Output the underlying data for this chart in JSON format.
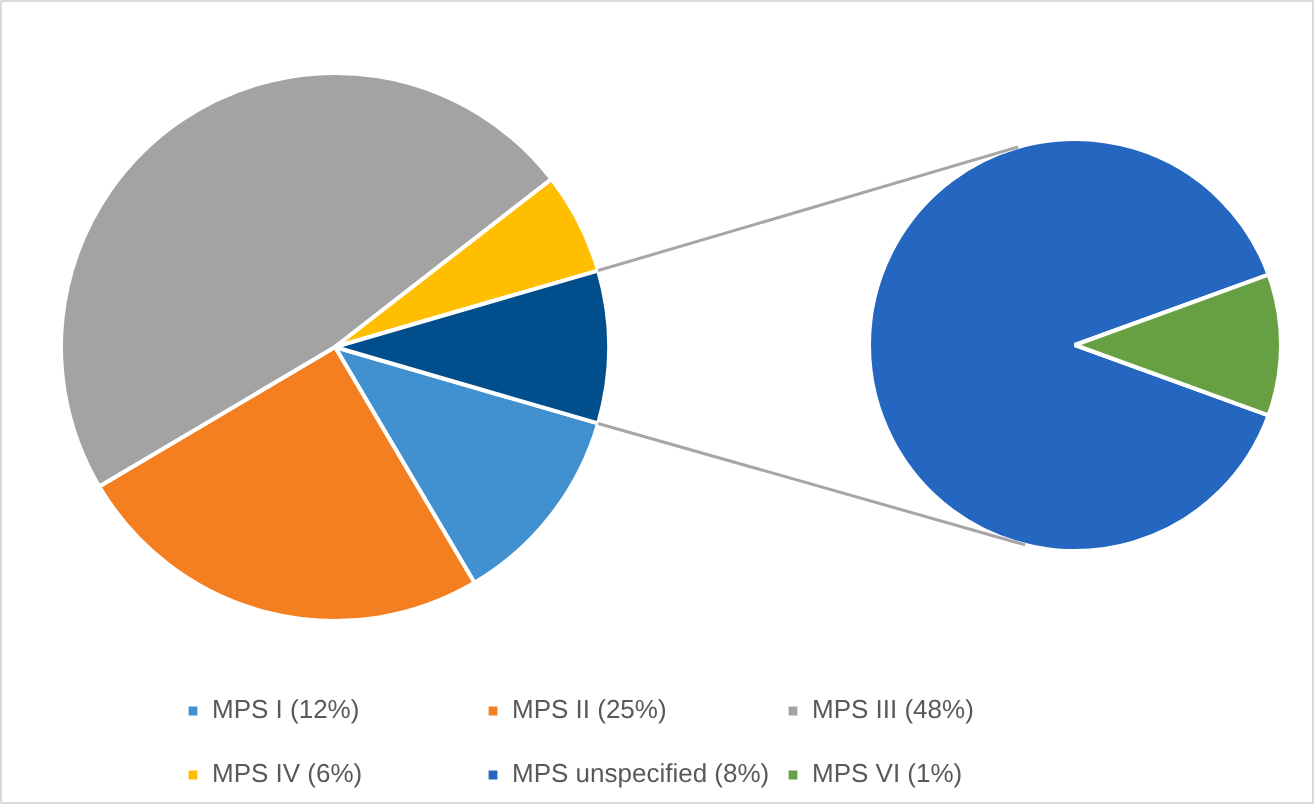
{
  "chart_data": [
    {
      "type": "pie",
      "categories": [
        "MPS I (12%)",
        "MPS II (25%)",
        "MPS III (48%)",
        "MPS IV (6%)",
        null
      ],
      "values": [
        12,
        25,
        48,
        6,
        9
      ],
      "colors": [
        "#4190d0",
        "#f47f20",
        "#a3a3a3",
        "#ffbf00",
        "#004e8c"
      ],
      "legend": "bottom"
    },
    {
      "type": "pie",
      "categories": [
        "MPS unspecified (8%)",
        "MPS VI (1%)"
      ],
      "values": [
        8,
        1
      ],
      "colors": [
        "#2566c0",
        "#67a042"
      ],
      "legend": "bottom"
    }
  ]
}
